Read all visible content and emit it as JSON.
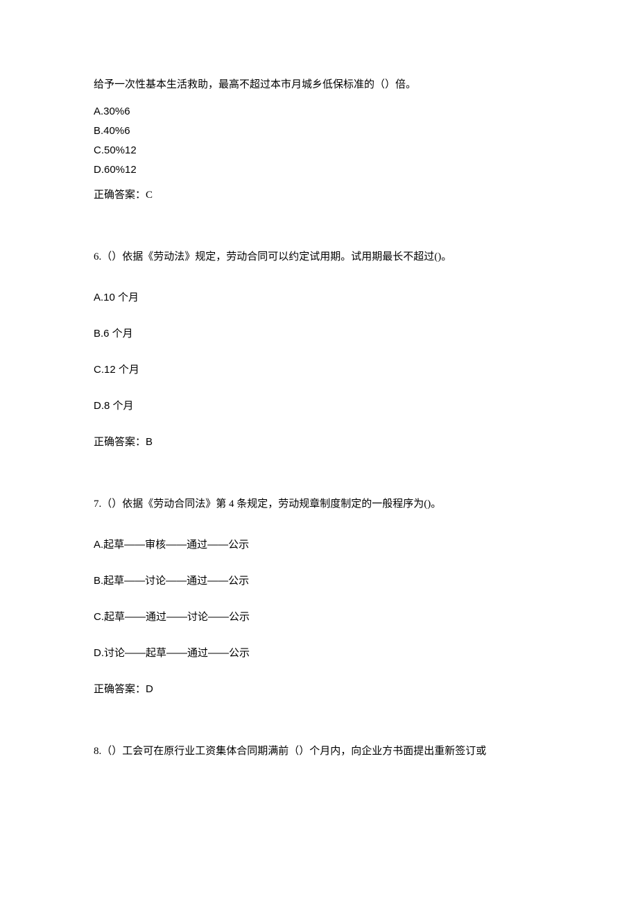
{
  "q5": {
    "text": "给予一次性基本生活救助，最高不超过本市月城乡低保标准的（）倍。",
    "options": {
      "a": "A.30%6",
      "b": "B.40%6",
      "c": "C.50%12",
      "d": "D.60%12"
    },
    "answer": "正确答案：C"
  },
  "q6": {
    "text": "6.（）依据《劳动法》规定，劳动合同可以约定试用期。试用期最长不超过()。",
    "options": {
      "a": "A.10 个月",
      "b": "B.6 个月",
      "c": "C.12 个月",
      "d": "D.8 个月"
    },
    "answer": "正确答案：B"
  },
  "q7": {
    "text": "7.（）依据《劳动合同法》第 4 条规定，劳动规章制度制定的一般程序为()。",
    "options": {
      "a": "A.起草——审核——通过——公示",
      "b": "B.起草——讨论——通过——公示",
      "c": "C.起草——通过——讨论——公示",
      "d": "D.讨论——起草——通过——公示"
    },
    "answer": "正确答案：D"
  },
  "q8": {
    "text": "8.（）工会可在原行业工资集体合同期满前（）个月内，向企业方书面提出重新签订或"
  }
}
